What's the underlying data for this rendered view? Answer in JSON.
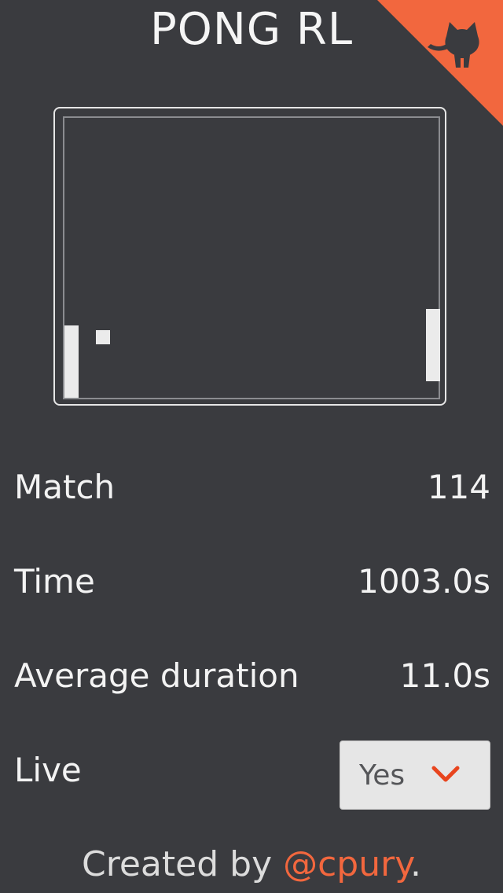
{
  "app": {
    "title": "PONG RL",
    "accent_color": "#f2673e",
    "background_color": "#3a3b3f"
  },
  "corner_link": {
    "icon": "github-octocat-icon"
  },
  "game": {
    "paddle_color": "#ebebeb",
    "border_color": "#e6e6e6"
  },
  "stats": {
    "match": {
      "label": "Match",
      "value": "114"
    },
    "time": {
      "label": "Time",
      "value": "1003.0s"
    },
    "average_duration": {
      "label": "Average duration",
      "value": "11.0s"
    },
    "live": {
      "label": "Live",
      "selected": "Yes"
    }
  },
  "footer": {
    "prefix": "Created by ",
    "link_text": "@cpury",
    "suffix": "."
  }
}
